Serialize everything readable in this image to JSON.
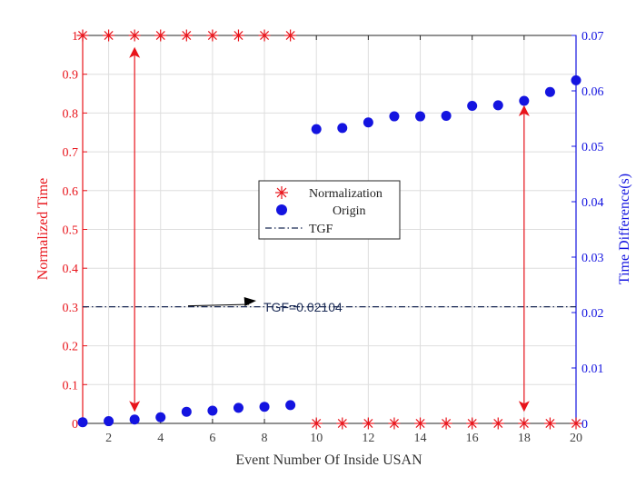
{
  "chart_data": {
    "type": "scatter",
    "xlabel": "Event Number Of Inside USAN",
    "ylabel_left": "Normalized Time",
    "ylabel_right": "Time Difference(s)",
    "xlim": [
      1,
      20
    ],
    "ylim_left": [
      0,
      1
    ],
    "ylim_right": [
      0,
      0.07
    ],
    "x_ticks": [
      2,
      4,
      6,
      8,
      10,
      12,
      14,
      16,
      18,
      20
    ],
    "y_left_ticks": [
      "0",
      "0.1",
      "0.2",
      "0.3",
      "0.4",
      "0.5",
      "0.6",
      "0.7",
      "0.8",
      "0.9",
      "1"
    ],
    "y_right_ticks": [
      "0",
      "0.01",
      "0.02",
      "0.03",
      "0.04",
      "0.05",
      "0.06",
      "0.07"
    ],
    "grid": true,
    "colors": {
      "left_axis": "#e8141b",
      "right_axis": "#1414e0",
      "tgf": "#1a2a55",
      "arrow": "#000000"
    },
    "series": [
      {
        "name": "Normalization",
        "axis": "left",
        "marker": "asterisk",
        "color": "#e8141b",
        "x": [
          1,
          2,
          3,
          4,
          5,
          6,
          7,
          8,
          9,
          10,
          11,
          12,
          13,
          14,
          15,
          16,
          17,
          18,
          19,
          20
        ],
        "values": [
          1,
          1,
          1,
          1,
          1,
          1,
          1,
          1,
          1,
          0,
          0,
          0,
          0,
          0,
          0,
          0,
          0,
          0,
          0,
          0
        ]
      },
      {
        "name": "Origin",
        "axis": "right",
        "marker": "circle",
        "color": "#1414e0",
        "x": [
          1,
          2,
          3,
          4,
          5,
          6,
          7,
          8,
          9,
          10,
          11,
          12,
          13,
          14,
          15,
          16,
          17,
          18,
          19,
          20
        ],
        "values": [
          0.0002,
          0.0004,
          0.0007,
          0.0011,
          0.0021,
          0.0023,
          0.0028,
          0.003,
          0.0033,
          0.0531,
          0.0533,
          0.0543,
          0.0554,
          0.0554,
          0.0555,
          0.0573,
          0.0574,
          0.0582,
          0.0598,
          0.0619
        ]
      },
      {
        "name": "TGF",
        "axis": "right",
        "line_style": "dash-dot",
        "color": "#1a2a55",
        "value": 0.02104
      }
    ],
    "legend": {
      "placement": "center",
      "entries": [
        "Normalization",
        "Origin",
        "TGF"
      ]
    },
    "annotations": {
      "tgf_label": "TGF=0.02104",
      "double_arrows": [
        {
          "x": 3,
          "y_from": 0.03,
          "y_to": 0.97
        },
        {
          "x": 18,
          "y_from": 0.03,
          "y_to": 0.82
        }
      ]
    }
  }
}
